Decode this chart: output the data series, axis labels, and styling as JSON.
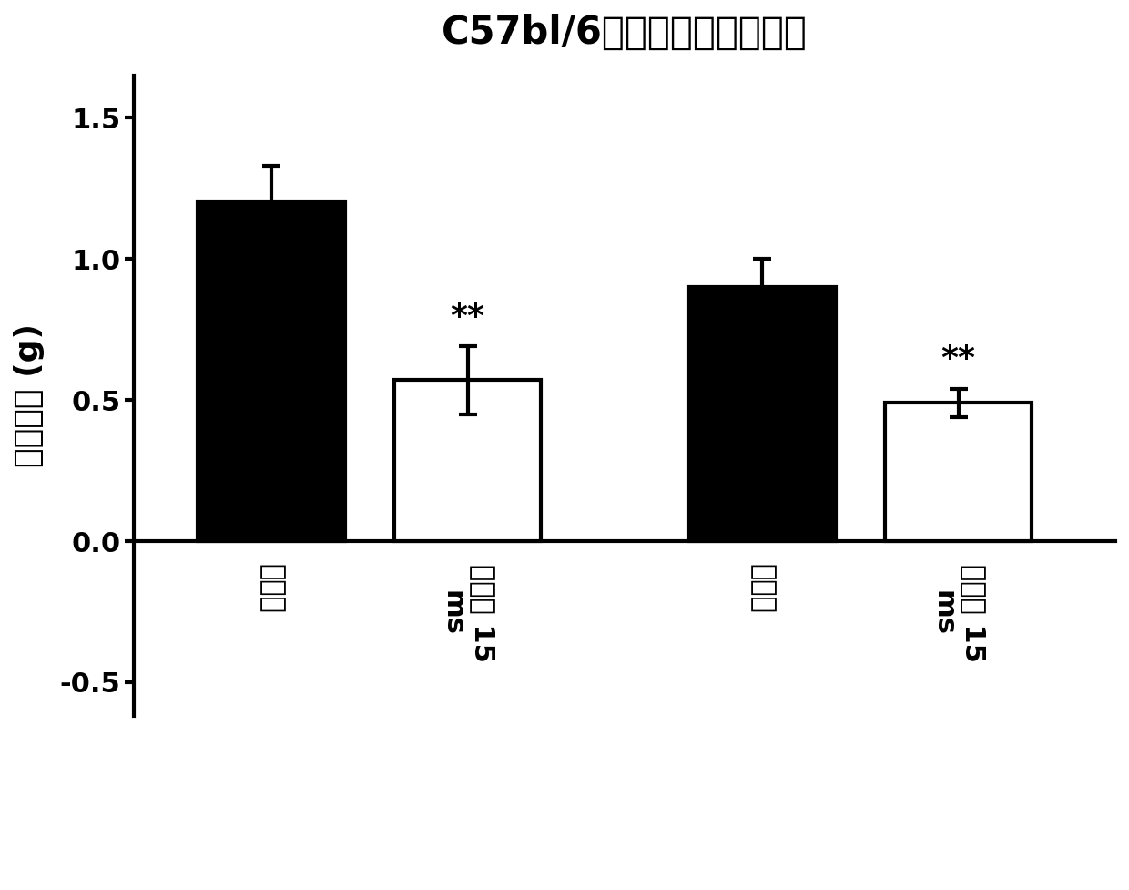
{
  "title": "C57bl/6小鼠的过夜体重变化",
  "ylabel": "体重变化 (g)",
  "bar_values": [
    1.2,
    0.57,
    0.9,
    0.49
  ],
  "bar_errors": [
    0.13,
    0.12,
    0.1,
    0.05
  ],
  "bar_colors": [
    "#000000",
    "#ffffff",
    "#000000",
    "#ffffff"
  ],
  "bar_edgecolors": [
    "#000000",
    "#000000",
    "#000000",
    "#000000"
  ],
  "bar_positions": [
    1,
    2,
    3.5,
    4.5
  ],
  "bar_width": 0.75,
  "ylim": [
    -0.62,
    1.65
  ],
  "yticks": [
    -0.5,
    0.0,
    0.5,
    1.0,
    1.5
  ],
  "tick_label_1": "赋形剂",
  "tick_label_2": "实施例 15",
  "tick_label_2b": "ms",
  "sig_text": "**",
  "background_color": "#ffffff",
  "title_fontsize": 30,
  "ylabel_fontsize": 26,
  "tick_fontsize": 22,
  "sig_fontsize": 26,
  "linewidth": 3.0,
  "xlim": [
    0.3,
    5.3
  ]
}
